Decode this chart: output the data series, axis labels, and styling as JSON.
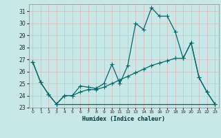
{
  "title": "",
  "xlabel": "Humidex (Indice chaleur)",
  "bg_color": "#c8e8e8",
  "grid_color": "#b8d8d8",
  "line_color": "#006666",
  "xlim": [
    -0.5,
    23.5
  ],
  "ylim": [
    23,
    31.6
  ],
  "yticks": [
    23,
    24,
    25,
    26,
    27,
    28,
    29,
    30,
    31
  ],
  "xticks": [
    0,
    1,
    2,
    3,
    4,
    5,
    6,
    7,
    8,
    9,
    10,
    11,
    12,
    13,
    14,
    15,
    16,
    17,
    18,
    19,
    20,
    21,
    22,
    23
  ],
  "line1_x": [
    0,
    1,
    2,
    3,
    4,
    5,
    6,
    7,
    8,
    9,
    10,
    11,
    12,
    13,
    14,
    15,
    16,
    17,
    18,
    19,
    20,
    21,
    22,
    23
  ],
  "line1_y": [
    26.8,
    25.1,
    24.1,
    23.3,
    24.0,
    24.0,
    24.8,
    24.7,
    24.6,
    25.0,
    26.6,
    25.0,
    26.5,
    30.0,
    29.5,
    31.3,
    30.6,
    30.6,
    29.3,
    27.1,
    28.4,
    25.5,
    24.3,
    23.3
  ],
  "line2_x": [
    0,
    1,
    2,
    3,
    4,
    5,
    6,
    7,
    8,
    9,
    10,
    11,
    12,
    13,
    14,
    15,
    16,
    17,
    18,
    19,
    20,
    21,
    22,
    23
  ],
  "line2_y": [
    26.8,
    25.1,
    24.1,
    23.3,
    24.0,
    24.0,
    24.3,
    24.5,
    24.5,
    24.7,
    25.0,
    25.3,
    25.6,
    25.9,
    26.2,
    26.5,
    26.7,
    26.9,
    27.1,
    27.1,
    28.4,
    25.5,
    24.3,
    23.3
  ],
  "line3_x": [
    3,
    23
  ],
  "line3_y": [
    23.3,
    23.3
  ]
}
